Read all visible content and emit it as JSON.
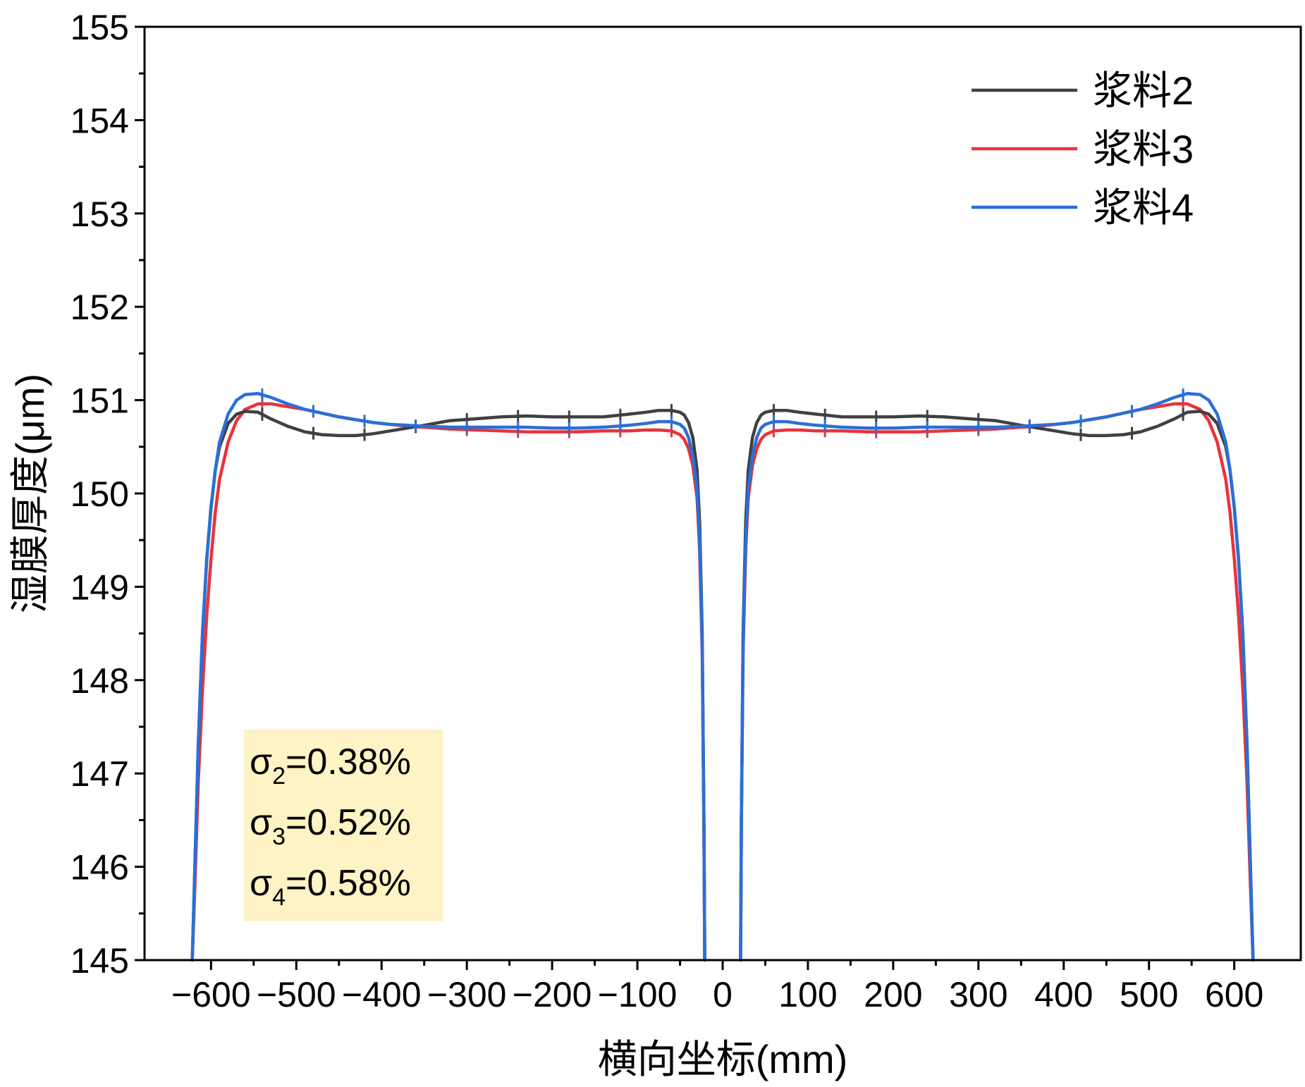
{
  "chart_data": {
    "type": "line",
    "xlabel": "横向坐标(mm)",
    "ylabel": "湿膜厚度(μm)",
    "xlim": [
      -678,
      678
    ],
    "ylim": [
      145,
      155
    ],
    "x_ticks": [
      -600,
      -500,
      -400,
      -300,
      -200,
      -100,
      0,
      100,
      200,
      300,
      400,
      500,
      600
    ],
    "x_tick_labels": [
      "−600",
      "−500",
      "−400",
      "−300",
      "−200",
      "−100",
      "0",
      "100",
      "200",
      "300",
      "400",
      "500",
      "600"
    ],
    "y_ticks": [
      145,
      146,
      147,
      148,
      149,
      150,
      151,
      152,
      153,
      154,
      155
    ],
    "y_tick_labels": [
      "145",
      "146",
      "147",
      "148",
      "149",
      "150",
      "151",
      "152",
      "153",
      "154",
      "155"
    ],
    "grid": false,
    "legend_position": "top-right",
    "series": [
      {
        "name": "浆料2",
        "color": "#404040",
        "x": [
          -622,
          -619,
          -615,
          -610,
          -605,
          -600,
          -595,
          -590,
          -580,
          -570,
          -560,
          -545,
          -530,
          -510,
          -490,
          -470,
          -450,
          -430,
          -410,
          -390,
          -370,
          -350,
          -320,
          -290,
          -260,
          -230,
          -200,
          -170,
          -140,
          -110,
          -90,
          -75,
          -60,
          -50,
          -45,
          -40,
          -35,
          -30,
          -27,
          -24,
          -22,
          -21,
          21,
          22,
          24,
          27,
          30,
          35,
          40,
          45,
          50,
          60,
          75,
          90,
          110,
          140,
          170,
          200,
          230,
          260,
          290,
          320,
          350,
          370,
          390,
          410,
          430,
          450,
          470,
          490,
          510,
          530,
          545,
          560,
          570,
          580,
          590,
          595,
          600,
          605,
          610,
          615,
          619,
          622
        ],
        "y": [
          145.0,
          146.0,
          147.3,
          148.5,
          149.3,
          149.85,
          150.25,
          150.5,
          150.75,
          150.85,
          150.88,
          150.87,
          150.8,
          150.72,
          150.66,
          150.63,
          150.62,
          150.62,
          150.64,
          150.67,
          150.7,
          150.73,
          150.78,
          150.8,
          150.82,
          150.83,
          150.82,
          150.82,
          150.82,
          150.85,
          150.87,
          150.89,
          150.89,
          150.87,
          150.84,
          150.76,
          150.6,
          150.25,
          149.7,
          148.5,
          146.5,
          145.0,
          145.0,
          146.5,
          148.5,
          149.7,
          150.25,
          150.6,
          150.76,
          150.84,
          150.87,
          150.89,
          150.89,
          150.87,
          150.85,
          150.82,
          150.82,
          150.82,
          150.83,
          150.82,
          150.8,
          150.78,
          150.73,
          150.7,
          150.67,
          150.64,
          150.62,
          150.62,
          150.63,
          150.66,
          150.72,
          150.8,
          150.87,
          150.88,
          150.85,
          150.75,
          150.5,
          150.25,
          149.85,
          149.3,
          148.5,
          147.3,
          146.0,
          145.0
        ]
      },
      {
        "name": "浆料3",
        "color": "#e8333b",
        "x": [
          -622,
          -619,
          -615,
          -610,
          -605,
          -600,
          -595,
          -590,
          -580,
          -570,
          -560,
          -545,
          -530,
          -510,
          -490,
          -470,
          -450,
          -430,
          -410,
          -390,
          -370,
          -350,
          -320,
          -290,
          -260,
          -230,
          -200,
          -170,
          -140,
          -110,
          -90,
          -75,
          -60,
          -50,
          -45,
          -40,
          -35,
          -30,
          -27,
          -24,
          -22,
          -21,
          21,
          22,
          24,
          27,
          30,
          35,
          40,
          45,
          50,
          60,
          75,
          90,
          110,
          140,
          170,
          200,
          230,
          260,
          290,
          320,
          350,
          370,
          390,
          410,
          430,
          450,
          470,
          490,
          510,
          530,
          545,
          560,
          570,
          580,
          590,
          595,
          600,
          605,
          610,
          615,
          619,
          622
        ],
        "y": [
          145.0,
          145.8,
          146.9,
          147.9,
          148.7,
          149.3,
          149.8,
          150.15,
          150.55,
          150.78,
          150.9,
          150.96,
          150.96,
          150.93,
          150.9,
          150.86,
          150.82,
          150.79,
          150.76,
          150.74,
          150.72,
          150.71,
          150.69,
          150.68,
          150.67,
          150.66,
          150.66,
          150.66,
          150.67,
          150.67,
          150.68,
          150.68,
          150.67,
          150.63,
          150.58,
          150.48,
          150.3,
          149.95,
          149.4,
          148.3,
          146.5,
          145.0,
          145.0,
          146.5,
          148.3,
          149.4,
          149.95,
          150.3,
          150.48,
          150.58,
          150.63,
          150.67,
          150.68,
          150.68,
          150.67,
          150.67,
          150.66,
          150.66,
          150.66,
          150.67,
          150.68,
          150.69,
          150.71,
          150.72,
          150.74,
          150.76,
          150.79,
          150.82,
          150.86,
          150.9,
          150.93,
          150.96,
          150.96,
          150.9,
          150.78,
          150.55,
          150.15,
          149.8,
          149.3,
          148.7,
          147.9,
          146.9,
          145.8,
          145.0
        ]
      },
      {
        "name": "浆料4",
        "color": "#2b6fd6",
        "x": [
          -622,
          -619,
          -615,
          -610,
          -605,
          -600,
          -595,
          -590,
          -580,
          -570,
          -560,
          -545,
          -530,
          -510,
          -490,
          -470,
          -450,
          -430,
          -410,
          -390,
          -370,
          -350,
          -320,
          -290,
          -260,
          -230,
          -200,
          -170,
          -140,
          -110,
          -90,
          -75,
          -60,
          -50,
          -45,
          -40,
          -35,
          -30,
          -27,
          -24,
          -22,
          -21,
          21,
          22,
          24,
          27,
          30,
          35,
          40,
          45,
          50,
          60,
          75,
          90,
          110,
          140,
          170,
          200,
          230,
          260,
          290,
          320,
          350,
          370,
          390,
          410,
          430,
          450,
          470,
          490,
          510,
          530,
          545,
          560,
          570,
          580,
          590,
          595,
          600,
          605,
          610,
          615,
          619,
          622
        ],
        "y": [
          145.0,
          146.0,
          147.3,
          148.5,
          149.3,
          149.85,
          150.25,
          150.55,
          150.85,
          151.0,
          151.06,
          151.07,
          151.03,
          150.96,
          150.9,
          150.86,
          150.82,
          150.79,
          150.76,
          150.74,
          150.73,
          150.72,
          150.71,
          150.71,
          150.71,
          150.71,
          150.7,
          150.7,
          150.71,
          150.73,
          150.75,
          150.77,
          150.77,
          150.74,
          150.7,
          150.6,
          150.4,
          150.05,
          149.5,
          148.4,
          146.5,
          145.0,
          145.0,
          146.5,
          148.4,
          149.5,
          150.05,
          150.4,
          150.6,
          150.7,
          150.74,
          150.77,
          150.77,
          150.75,
          150.73,
          150.71,
          150.7,
          150.7,
          150.71,
          150.71,
          150.71,
          150.71,
          150.72,
          150.73,
          150.74,
          150.76,
          150.79,
          150.82,
          150.86,
          150.9,
          150.96,
          151.03,
          151.07,
          151.06,
          151.0,
          150.85,
          150.55,
          150.25,
          149.85,
          149.3,
          148.5,
          147.3,
          146.0,
          145.0
        ]
      }
    ],
    "marker_x": [
      -600,
      -540,
      -480,
      -420,
      -360,
      -300,
      -240,
      -180,
      -120,
      -60,
      60,
      120,
      180,
      240,
      300,
      360,
      420,
      480,
      540,
      600
    ],
    "legend": [
      {
        "label": "浆料2",
        "color": "#404040"
      },
      {
        "label": "浆料3",
        "color": "#e8333b"
      },
      {
        "label": "浆料4",
        "color": "#2b6fd6"
      }
    ],
    "annotation": {
      "background": "#fdf3c4",
      "lines": [
        {
          "symbol": "σ",
          "sub": "2",
          "value": "=0.38%"
        },
        {
          "symbol": "σ",
          "sub": "3",
          "value": "=0.52%"
        },
        {
          "symbol": "σ",
          "sub": "4",
          "value": "=0.58%"
        }
      ]
    }
  }
}
